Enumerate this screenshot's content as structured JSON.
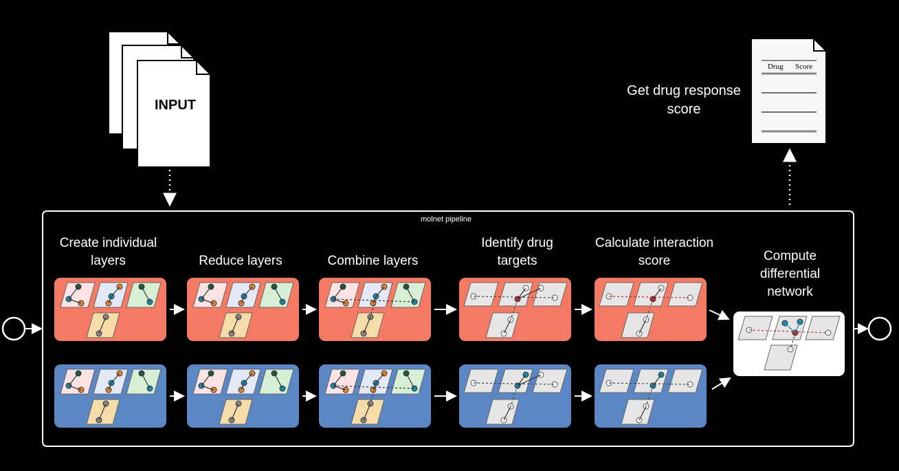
{
  "input_label": "INPUT",
  "output_label": "Get drug response score",
  "output_doc": {
    "col1": "Drug",
    "col2": "Score"
  },
  "pipeline_label": "molnet pipeline",
  "steps": [
    "Create individual layers",
    "Reduce layers",
    "Combine layers",
    "Identify drug targets",
    "Calculate interaction score"
  ],
  "final_step": "Compute differential network",
  "colors": {
    "group1": "#f47a63",
    "group2": "#5b87c5",
    "background": "#000000",
    "layer_pink": "#fde3e3",
    "layer_blue": "#e3e9f7",
    "layer_green": "#d7f0d5",
    "layer_tan": "#f5dca9",
    "layer_grey": "#e6e6e6",
    "node_dark": "#1e5946",
    "node_orange": "#e8862a",
    "node_teal": "#1b8cb0",
    "node_red": "#d6243a",
    "node_grey": "#8a8a8a"
  }
}
